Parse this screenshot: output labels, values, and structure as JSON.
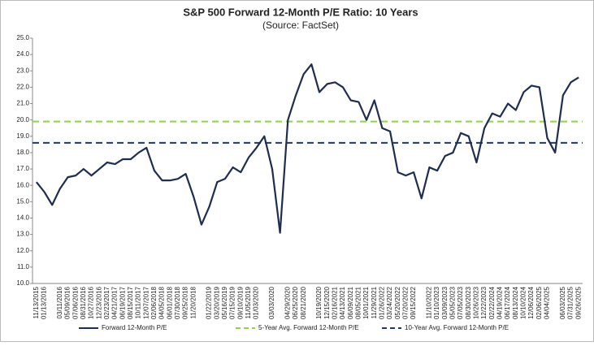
{
  "chart_data": {
    "type": "line",
    "title": "S&P 500 Forward 12-Month P/E Ratio: 10 Years",
    "subtitle": "(Source: FactSet)",
    "categories": [
      "11/13/2015",
      "01/13/2016",
      null,
      "03/11/2016",
      "05/09/2016",
      "07/06/2016",
      "08/31/2016",
      "10/27/2016",
      "12/23/2016",
      "02/23/2017",
      "04/21/2017",
      "06/19/2017",
      "08/15/2017",
      "10/11/2017",
      "12/07/2017",
      "02/06/2018",
      "04/05/2018",
      "06/01/2018",
      "07/30/2018",
      "09/25/2018",
      "11/20/2018",
      null,
      "01/22/2019",
      "03/20/2019",
      "05/16/2019",
      "07/15/2019",
      "09/10/2019",
      "11/05/2019",
      "01/03/2020",
      null,
      "03/03/2020",
      null,
      "04/29/2020",
      "06/25/2020",
      "08/21/2020",
      null,
      "10/19/2020",
      "12/15/2020",
      "02/16/2021",
      "04/13/2021",
      "06/09/2021",
      "08/05/2021",
      "10/01/2021",
      "11/29/2021",
      "01/26/2022",
      "03/24/2022",
      "05/20/2022",
      "07/20/2022",
      "09/15/2022",
      null,
      "11/10/2022",
      "01/10/2023",
      "03/09/2023",
      "05/05/2023",
      "07/05/2023",
      "08/30/2023",
      "10/26/2023",
      "12/22/2023",
      "02/22/2024",
      "04/19/2024",
      "06/17/2024",
      "08/13/2024",
      "10/10/2024",
      "12/06/2024",
      "02/06/2025",
      "04/04/2025",
      null,
      "06/03/2025",
      "07/31/2025",
      "09/26/2025"
    ],
    "series": [
      {
        "name": "Forward 12-Month P/E",
        "color": "#1f2d4e",
        "values": [
          16.2,
          15.6,
          14.8,
          15.8,
          16.5,
          16.6,
          17.0,
          16.6,
          17.0,
          17.4,
          17.3,
          17.6,
          17.6,
          18.0,
          18.3,
          16.9,
          16.3,
          16.3,
          16.4,
          16.7,
          15.3,
          13.6,
          14.7,
          16.2,
          16.4,
          17.1,
          16.8,
          17.7,
          18.3,
          19.0,
          17.0,
          13.1,
          20.0,
          21.5,
          22.8,
          23.4,
          21.7,
          22.2,
          22.3,
          22.0,
          21.2,
          21.1,
          20.0,
          21.2,
          19.5,
          19.3,
          16.8,
          16.6,
          16.8,
          15.2,
          17.1,
          16.9,
          17.8,
          18.0,
          19.2,
          19.0,
          17.4,
          19.5,
          20.4,
          20.2,
          21.0,
          20.6,
          21.7,
          22.1,
          22.0,
          18.9,
          18.0,
          21.5,
          22.3,
          22.6
        ]
      }
    ],
    "reference_lines": [
      {
        "name": "5-Year Avg. Forward 12-Month P/E",
        "value": 19.9,
        "color": "#92d050"
      },
      {
        "name": "10-Year Avg. Forward 12-Month P/E",
        "value": 18.6,
        "color": "#1f3864"
      }
    ],
    "ylim": [
      10,
      25
    ],
    "yticks": [
      {
        "value": 10,
        "label": "10.0"
      },
      {
        "value": 11,
        "label": "11.0"
      },
      {
        "value": 12,
        "label": "12.0"
      },
      {
        "value": 13,
        "label": "13.0"
      },
      {
        "value": 14,
        "label": "14.0"
      },
      {
        "value": 15,
        "label": "15.0"
      },
      {
        "value": 16,
        "label": "16.0"
      },
      {
        "value": 17,
        "label": "17.0"
      },
      {
        "value": 18,
        "label": "18.0"
      },
      {
        "value": 19,
        "label": "19.0"
      },
      {
        "value": 20,
        "label": "20.0"
      },
      {
        "value": 21,
        "label": "21.0"
      },
      {
        "value": 22,
        "label": "22.0"
      },
      {
        "value": 23,
        "label": "23.0"
      },
      {
        "value": 24,
        "label": "24.0"
      },
      {
        "value": 25,
        "label": "25.0"
      }
    ],
    "grid": false
  }
}
